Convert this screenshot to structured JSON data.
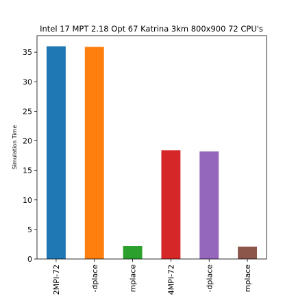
{
  "chart_data": {
    "type": "bar",
    "title": "Intel 17 MPT 2.18 Opt 67 Katrina 3km 800x900 72 CPU's",
    "xlabel": "",
    "ylabel": "Simulation Time",
    "categories": [
      "2MPI-72",
      "-dplace",
      "mplace",
      "4MPI-72",
      "-dplace",
      "mplace"
    ],
    "values": [
      36.0,
      35.9,
      2.2,
      18.4,
      18.2,
      2.1
    ],
    "colors": [
      "#1f77b4",
      "#ff7f0e",
      "#2ca02c",
      "#d62728",
      "#9467bd",
      "#8c564b"
    ],
    "ylim": [
      0,
      37.8
    ],
    "yticks": [
      0,
      5,
      10,
      15,
      20,
      25,
      30,
      35
    ],
    "grid": false,
    "legend": "none"
  }
}
